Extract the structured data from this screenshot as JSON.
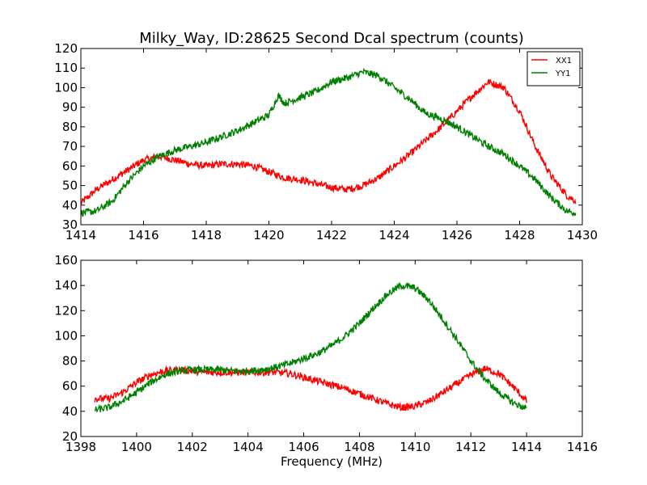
{
  "title": "Milky_Way, ID:28625 Second Dcal spectrum (counts)",
  "chart_data": [
    {
      "type": "line",
      "title": "Milky_Way, ID:28625 Second Dcal spectrum (counts)",
      "xlabel": "",
      "ylabel": "",
      "xlim": [
        1414,
        1430
      ],
      "ylim": [
        30,
        120
      ],
      "xticks": [
        1414,
        1416,
        1418,
        1420,
        1422,
        1424,
        1426,
        1428,
        1430
      ],
      "yticks": [
        30,
        40,
        50,
        60,
        70,
        80,
        90,
        100,
        110,
        120
      ],
      "grid": false,
      "legend": "top-right",
      "series": [
        {
          "name": "XX1",
          "color": "#ff0000",
          "x": [
            1414.0,
            1414.5,
            1415.0,
            1415.5,
            1416.0,
            1416.5,
            1417.0,
            1417.5,
            1418.0,
            1418.5,
            1419.0,
            1419.5,
            1420.0,
            1420.5,
            1421.0,
            1421.5,
            1422.0,
            1422.5,
            1423.0,
            1423.5,
            1424.0,
            1424.5,
            1425.0,
            1425.5,
            1426.0,
            1426.5,
            1427.0,
            1427.5,
            1428.0,
            1428.5,
            1429.0,
            1429.5,
            1429.8
          ],
          "y": [
            41,
            48,
            53,
            58,
            63,
            65,
            63,
            61,
            60,
            61,
            61,
            60,
            57,
            54,
            53,
            51,
            49,
            48,
            50,
            54,
            60,
            66,
            73,
            80,
            88,
            96,
            103,
            100,
            88,
            70,
            55,
            45,
            42
          ]
        },
        {
          "name": "YY1",
          "color": "#008000",
          "x": [
            1414.0,
            1414.5,
            1415.0,
            1415.5,
            1416.0,
            1416.5,
            1417.0,
            1417.5,
            1418.0,
            1418.5,
            1419.0,
            1419.5,
            1420.0,
            1420.3,
            1420.5,
            1421.0,
            1421.5,
            1422.0,
            1422.5,
            1423.0,
            1423.5,
            1424.0,
            1424.5,
            1425.0,
            1425.5,
            1426.0,
            1426.5,
            1427.0,
            1427.5,
            1428.0,
            1428.5,
            1429.0,
            1429.5,
            1429.8
          ],
          "y": [
            36,
            37,
            42,
            52,
            60,
            65,
            68,
            70,
            72,
            75,
            78,
            82,
            86,
            96,
            92,
            95,
            98,
            103,
            105,
            108,
            106,
            100,
            94,
            87,
            84,
            80,
            75,
            70,
            66,
            60,
            53,
            44,
            37,
            36
          ]
        }
      ]
    },
    {
      "type": "line",
      "title": "",
      "xlabel": "Frequency (MHz)",
      "ylabel": "",
      "xlim": [
        1398,
        1416
      ],
      "ylim": [
        20,
        160
      ],
      "xticks": [
        1398,
        1400,
        1402,
        1404,
        1406,
        1408,
        1410,
        1412,
        1414,
        1416
      ],
      "yticks": [
        20,
        40,
        60,
        80,
        100,
        120,
        140,
        160
      ],
      "grid": false,
      "series": [
        {
          "color": "#ff0000",
          "x": [
            1398.5,
            1399.0,
            1399.5,
            1400.0,
            1400.5,
            1401.0,
            1401.5,
            1402.0,
            1402.5,
            1403.0,
            1403.5,
            1404.0,
            1404.5,
            1405.0,
            1405.5,
            1406.0,
            1406.5,
            1407.0,
            1407.5,
            1408.0,
            1408.5,
            1409.0,
            1409.5,
            1410.0,
            1410.5,
            1411.0,
            1411.5,
            1412.0,
            1412.5,
            1413.0,
            1413.5,
            1414.0
          ],
          "y": [
            50,
            50,
            55,
            63,
            69,
            72,
            73,
            72,
            71,
            71,
            71,
            71,
            71,
            71,
            70,
            67,
            64,
            61,
            58,
            54,
            50,
            46,
            43,
            44,
            48,
            55,
            62,
            69,
            74,
            70,
            60,
            48
          ]
        },
        {
          "color": "#008000",
          "x": [
            1398.5,
            1399.0,
            1399.5,
            1400.0,
            1400.5,
            1401.0,
            1401.5,
            1402.0,
            1402.5,
            1403.0,
            1403.5,
            1404.0,
            1404.5,
            1405.0,
            1405.5,
            1406.0,
            1406.5,
            1407.0,
            1407.5,
            1408.0,
            1408.5,
            1409.0,
            1409.5,
            1410.0,
            1410.5,
            1411.0,
            1411.5,
            1412.0,
            1412.5,
            1413.0,
            1413.5,
            1414.0
          ],
          "y": [
            41,
            43,
            48,
            55,
            63,
            69,
            72,
            73,
            73,
            73,
            72,
            72,
            73,
            75,
            78,
            82,
            86,
            92,
            100,
            110,
            122,
            133,
            140,
            138,
            128,
            113,
            97,
            80,
            66,
            55,
            47,
            42
          ]
        }
      ]
    }
  ]
}
